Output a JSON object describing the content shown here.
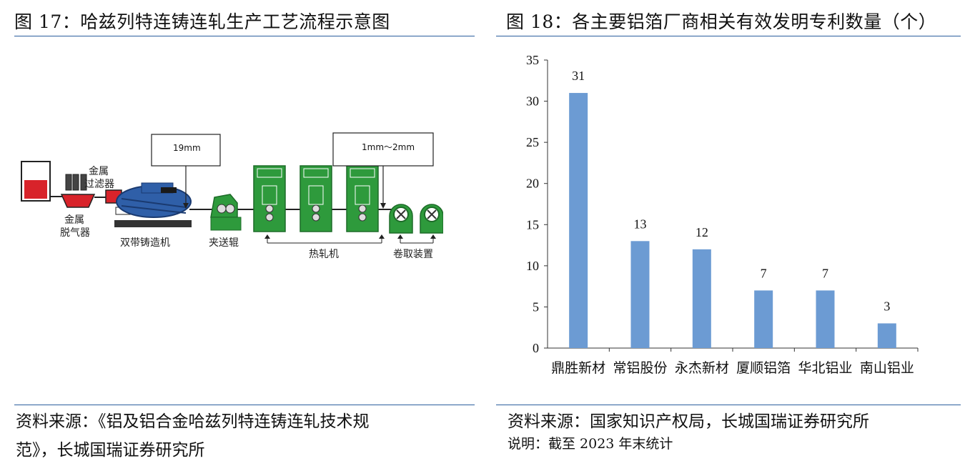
{
  "left_panel": {
    "title": "图 17：哈兹列特连铸连轧生产工艺流程示意图",
    "diagram": {
      "callout_left": "19mm",
      "callout_right": "1mm～2mm",
      "label_filter_1": "金属",
      "label_filter_2": "过滤器",
      "label_degasser_1": "金属",
      "label_degasser_2": "脱气器",
      "label_caster": "双带铸造机",
      "label_pinch": "夹送辊",
      "label_hotmill": "热轧机",
      "label_coiler": "卷取装置"
    },
    "source_line1": "资料来源：《铝及铝合金哈兹列特连铸连轧技术规",
    "source_line2": "范》，长城国瑞证券研究所"
  },
  "right_panel": {
    "title": "图 18：各主要铝箔厂商相关有效发明专利数量（个）",
    "source": "资料来源：国家知识产权局，长城国瑞证券研究所",
    "note": "说明：截至 2023 年末统计"
  },
  "chart_data": {
    "type": "bar",
    "categories": [
      "鼎胜新材",
      "常铝股份",
      "永杰新材",
      "厦顺铝箔",
      "华北铝业",
      "南山铝业"
    ],
    "values": [
      31,
      13,
      12,
      7,
      7,
      3
    ],
    "data_labels": [
      "31",
      "13",
      "12",
      "7",
      "7",
      "3"
    ],
    "title": "图 18：各主要铝箔厂商相关有效发明专利数量（个）",
    "xlabel": "",
    "ylabel": "",
    "ylim": [
      0,
      35
    ],
    "yticks": [
      0,
      5,
      10,
      15,
      20,
      25,
      30,
      35
    ],
    "ytick_labels": [
      "0",
      "5",
      "10",
      "15",
      "20",
      "25",
      "30",
      "35"
    ],
    "grid": false,
    "legend": "none",
    "bar_color": "#6c9bd3"
  },
  "colors": {
    "rule": "#2b5f9e",
    "machine_green": "#2e9a3c",
    "caster_blue": "#2f5fa8",
    "metal_red": "#d8232a"
  }
}
